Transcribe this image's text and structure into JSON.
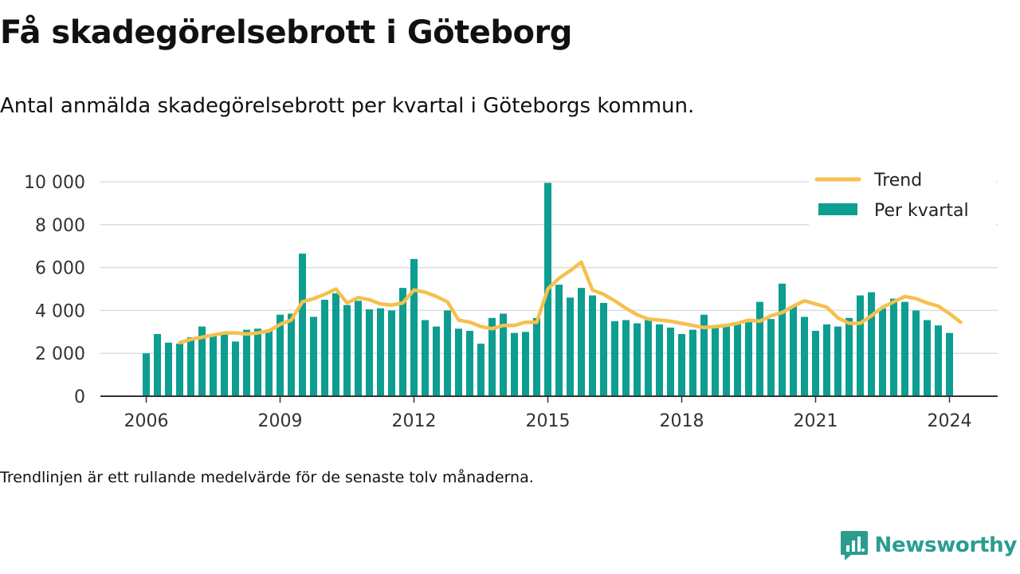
{
  "title": "Få skadegörelsebrott i Göteborg",
  "subtitle": "Antal anmälda skadegörelsebrott per kvartal i Göteborgs kommun.",
  "footnote": "Trendlinjen är ett rullande medelvärde för de senaste tolv månaderna.",
  "brand": "Newsworthy",
  "chart_data": {
    "type": "bar",
    "x_start": 2006,
    "quarters_per_year": 4,
    "xticks": [
      "2006",
      "2009",
      "2012",
      "2015",
      "2018",
      "2021",
      "2024"
    ],
    "xtick_years": [
      2006,
      2009,
      2012,
      2015,
      2018,
      2021,
      2024
    ],
    "yticks": [
      "0",
      "2 000",
      "4 000",
      "6 000",
      "8 000",
      "10 000"
    ],
    "ytick_values": [
      0,
      2000,
      4000,
      6000,
      8000,
      10000
    ],
    "ylim": [
      0,
      10000
    ],
    "grid": true,
    "legend_position": "top-right",
    "colors": {
      "bar": "#0d9e91",
      "trend": "#f5c04e",
      "grid": "#dddddd",
      "axis": "#333333",
      "brand": "#2a9d8f"
    },
    "series": [
      {
        "name": "Per kvartal",
        "type": "bar",
        "values": [
          2000,
          2900,
          2500,
          2450,
          2750,
          3250,
          2800,
          2900,
          2550,
          3100,
          3150,
          3050,
          3800,
          3850,
          6650,
          3700,
          4500,
          4800,
          4250,
          4450,
          4050,
          4100,
          4000,
          5050,
          6400,
          3550,
          3250,
          4000,
          3150,
          3050,
          2450,
          3650,
          3850,
          2950,
          3000,
          3650,
          9950,
          5200,
          4600,
          5050,
          4700,
          4350,
          3500,
          3550,
          3400,
          3550,
          3350,
          3200,
          2900,
          3100,
          3800,
          3300,
          3350,
          3400,
          3450,
          4400,
          3600,
          5250,
          4200,
          3700,
          3050,
          3350,
          3250,
          3650,
          4700,
          4850,
          4100,
          4550,
          4400,
          4000,
          3550,
          3300,
          2950
        ]
      },
      {
        "name": "Trend",
        "type": "line",
        "start_index": 3,
        "values": [
          2500,
          2650,
          2750,
          2850,
          2950,
          2950,
          2900,
          2950,
          3050,
          3350,
          3550,
          4400,
          4550,
          4750,
          5000,
          4350,
          4600,
          4500,
          4300,
          4250,
          4350,
          4950,
          4850,
          4650,
          4400,
          3550,
          3450,
          3250,
          3150,
          3300,
          3300,
          3450,
          3450,
          5000,
          5500,
          5850,
          6250,
          4950,
          4750,
          4450,
          4100,
          3800,
          3600,
          3550,
          3500,
          3400,
          3300,
          3200,
          3250,
          3300,
          3400,
          3550,
          3500,
          3750,
          3900,
          4200,
          4450,
          4300,
          4150,
          3650,
          3400,
          3400,
          3750,
          4150,
          4400,
          4650,
          4550,
          4350,
          4200,
          3850,
          3450
        ]
      }
    ]
  }
}
